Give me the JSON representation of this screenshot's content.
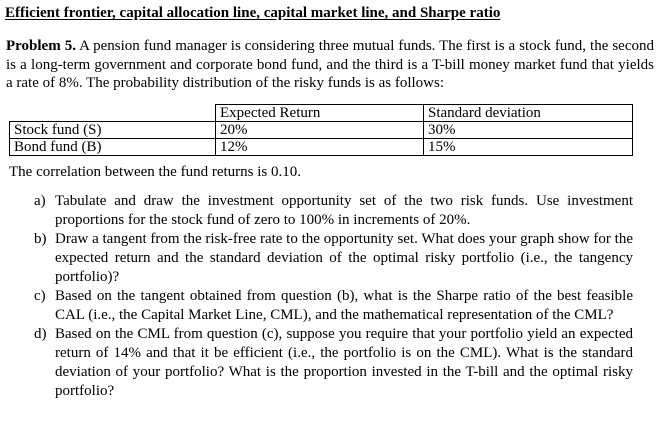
{
  "title": "Efficient frontier, capital allocation line, capital market line, and Sharpe ratio",
  "problem": {
    "label": "Problem 5.",
    "intro": "A pension fund manager is considering three mutual funds. The first is a stock fund, the second is a long-term government and corporate bond fund, and the third is a T-bill money market fund that yields a rate of 8%. The probability distribution of the risky funds is as follows:"
  },
  "table": {
    "headers": [
      "",
      "Expected Return",
      "Standard deviation"
    ],
    "rows": [
      [
        "Stock fund (S)",
        "20%",
        "30%"
      ],
      [
        "Bond fund (B)",
        "12%",
        "15%"
      ]
    ]
  },
  "correlation_note": "The correlation between the fund returns is 0.10.",
  "questions": [
    {
      "marker": "a)",
      "text": "Tabulate and draw the investment opportunity set of the two risk funds. Use investment proportions for the stock fund of zero to 100% in increments of 20%."
    },
    {
      "marker": "b)",
      "text": "Draw a tangent from the risk-free rate to the opportunity set. What does your graph show for the expected return and the standard deviation of the optimal risky portfolio (i.e., the tangency portfolio)?"
    },
    {
      "marker": "c)",
      "text": "Based on the tangent obtained from question (b), what is the Sharpe ratio of the best feasible CAL (i.e., the Capital Market Line, CML), and the mathematical representation of the CML?"
    },
    {
      "marker": "d)",
      "text": "Based on the CML from question (c), suppose you require that your portfolio yield an expected return of 14% and that it be efficient (i.e., the portfolio is on the CML). What is the standard deviation of your portfolio? What is the proportion invested in the T-bill and the optimal risky portfolio?"
    }
  ]
}
